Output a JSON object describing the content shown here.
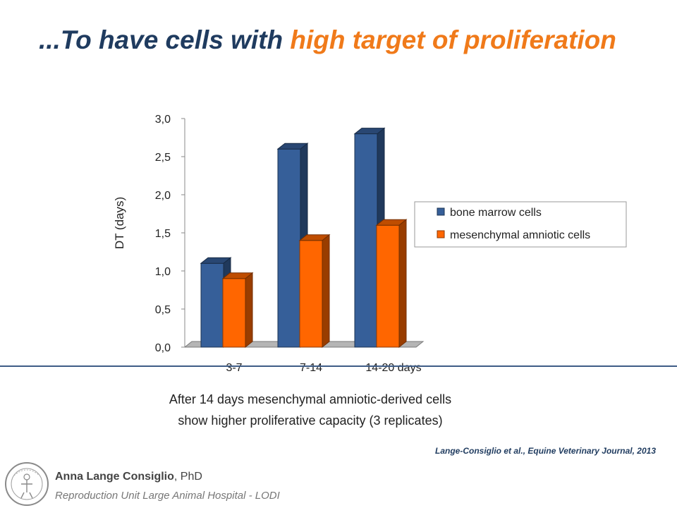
{
  "title": {
    "part1": "...To have cells with ",
    "part2": "high target of proliferation"
  },
  "chart_data": {
    "type": "bar",
    "categories": [
      "3-7",
      "7-14",
      "14-20 days"
    ],
    "series": [
      {
        "name": "bone marrow cells",
        "values": [
          1.1,
          2.6,
          2.8
        ],
        "color": "#365f99"
      },
      {
        "name": "mesenchymal amniotic cells",
        "values": [
          0.9,
          1.4,
          1.6
        ],
        "color": "#ff6600"
      }
    ],
    "ylabel": "DT (days)",
    "ylim": [
      0,
      3.0
    ],
    "yticks": [
      "0,0",
      "0,5",
      "1,0",
      "1,5",
      "2,0",
      "2,5",
      "3,0"
    ],
    "legend_position": "right",
    "grid": false
  },
  "caption": {
    "line1": "After 14 days  mesenchymal amniotic-derived cells",
    "line2": "show higher proliferative capacity (3 replicates)"
  },
  "citation": "Lange-Consiglio  et al., Equine Veterinary Journal, 2013",
  "footer": {
    "author_name": "Anna Lange Consiglio",
    "author_degree": ", PhD",
    "affiliation": "Reproduction Unit Large Animal Hospital - LODI"
  }
}
